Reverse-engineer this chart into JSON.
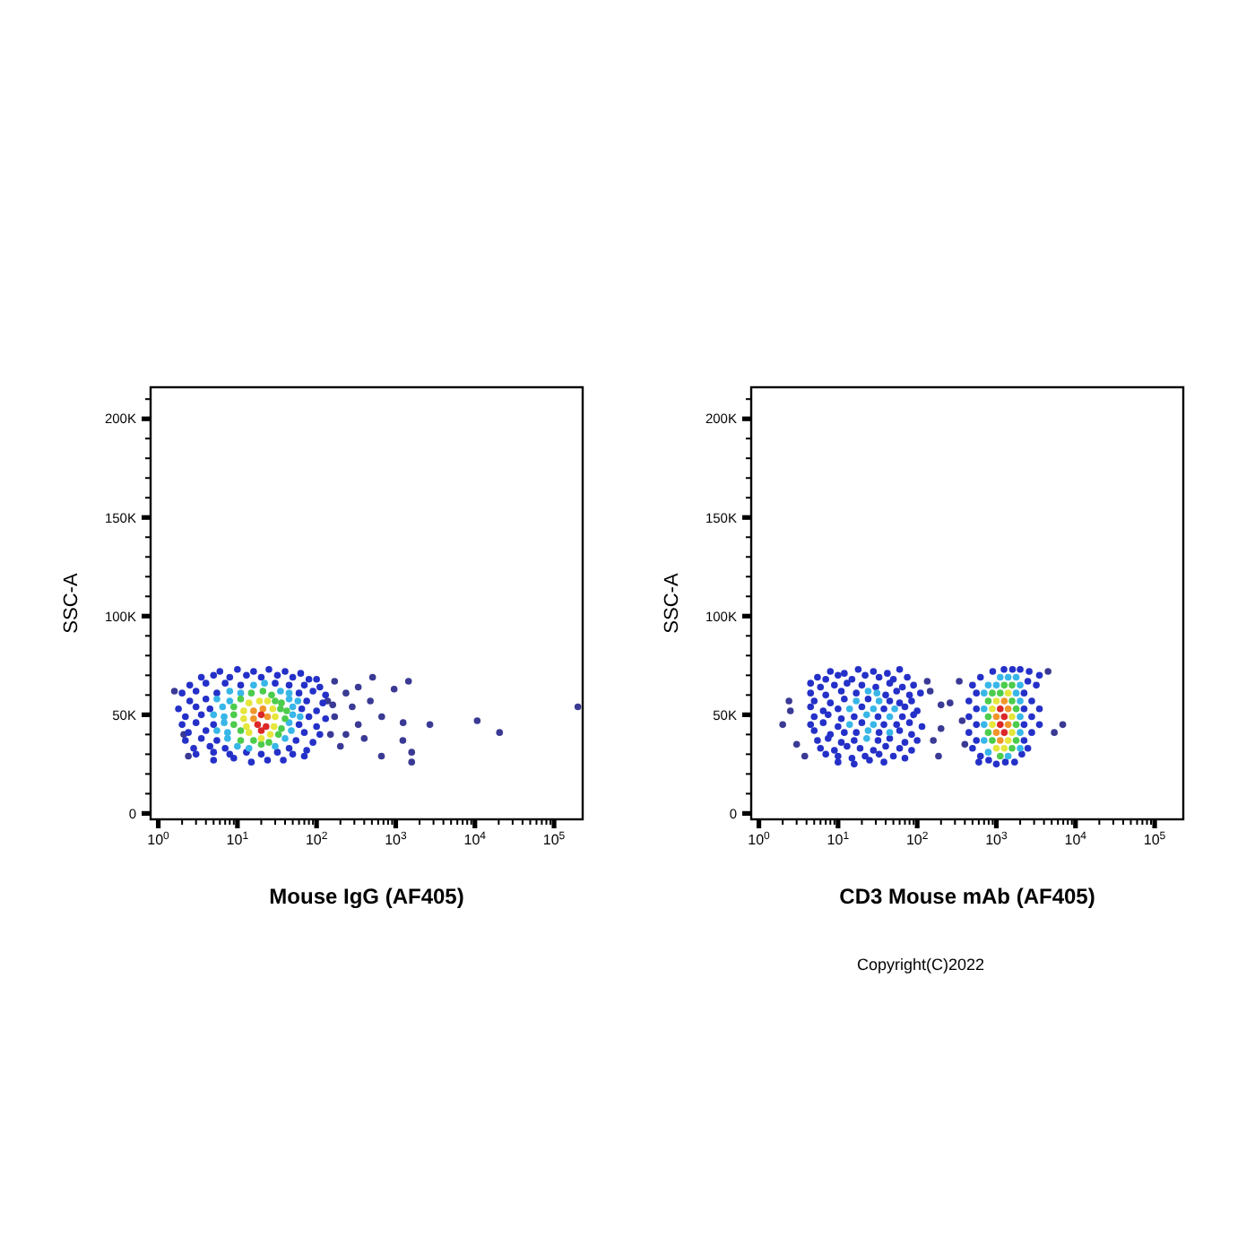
{
  "chart_data": [
    {
      "type": "scatter",
      "xlabel": "Mouse IgG (AF405)",
      "ylabel": "SSC-A",
      "log": "x",
      "marker": "circle",
      "xlim": [
        0.8,
        230000
      ],
      "ylim": [
        -3000,
        216000
      ],
      "xticks": [
        {
          "value": 1,
          "label": "10$^{0}$"
        },
        {
          "value": 2,
          "label": null
        },
        {
          "value": 3,
          "label": null
        },
        {
          "value": 4,
          "label": null
        },
        {
          "value": 5,
          "label": null
        },
        {
          "value": 6,
          "label": null
        },
        {
          "value": 7,
          "label": null
        },
        {
          "value": 8,
          "label": null
        },
        {
          "value": 9,
          "label": null
        },
        {
          "value": 10,
          "label": "10$^{1}$"
        },
        {
          "value": 20,
          "label": null
        },
        {
          "value": 30,
          "label": null
        },
        {
          "value": 40,
          "label": null
        },
        {
          "value": 50,
          "label": null
        },
        {
          "value": 60,
          "label": null
        },
        {
          "value": 70,
          "label": null
        },
        {
          "value": 80,
          "label": null
        },
        {
          "value": 90,
          "label": null
        },
        {
          "value": 100,
          "label": "10$^{2}$"
        },
        {
          "value": 200,
          "label": null
        },
        {
          "value": 300,
          "label": null
        },
        {
          "value": 400,
          "label": null
        },
        {
          "value": 500,
          "label": null
        },
        {
          "value": 600,
          "label": null
        },
        {
          "value": 700,
          "label": null
        },
        {
          "value": 800,
          "label": null
        },
        {
          "value": 900,
          "label": null
        },
        {
          "value": 1000,
          "label": "10$^{3}$"
        },
        {
          "value": 2000,
          "label": null
        },
        {
          "value": 3000,
          "label": null
        },
        {
          "value": 4000,
          "label": null
        },
        {
          "value": 5000,
          "label": null
        },
        {
          "value": 6000,
          "label": null
        },
        {
          "value": 7000,
          "label": null
        },
        {
          "value": 8000,
          "label": null
        },
        {
          "value": 9000,
          "label": null
        },
        {
          "value": 10000,
          "label": "10$^{4}$"
        },
        {
          "value": 20000,
          "label": null
        },
        {
          "value": 30000,
          "label": null
        },
        {
          "value": 40000,
          "label": null
        },
        {
          "value": 50000,
          "label": null
        },
        {
          "value": 60000,
          "label": null
        },
        {
          "value": 70000,
          "label": null
        },
        {
          "value": 80000,
          "label": null
        },
        {
          "value": 90000,
          "label": null
        },
        {
          "value": 100000,
          "label": "10$^{5}$"
        }
      ],
      "yticks": [
        0,
        {
          "value": 10000,
          "label": null
        },
        {
          "value": 20000,
          "label": null
        },
        {
          "value": 30000,
          "label": null
        },
        {
          "value": 40000,
          "label": null
        },
        {
          "value": 50000,
          "label": "50K"
        },
        {
          "value": 60000,
          "label": null
        },
        {
          "value": 70000,
          "label": null
        },
        {
          "value": 80000,
          "label": null
        },
        {
          "value": 90000,
          "label": null
        },
        {
          "value": 100000,
          "label": "100K"
        },
        {
          "value": 110000,
          "label": null
        },
        {
          "value": 120000,
          "label": null
        },
        {
          "value": 130000,
          "label": null
        },
        {
          "value": 140000,
          "label": null
        },
        {
          "value": 150000,
          "label": "150K"
        },
        {
          "value": 160000,
          "label": null
        },
        {
          "value": 170000,
          "label": null
        },
        {
          "value": 180000,
          "label": null
        },
        {
          "value": 190000,
          "label": null
        },
        {
          "value": 200000,
          "label": "200K"
        },
        {
          "value": 210000,
          "label": null
        }
      ],
      "series": [
        {
          "color": "#3a3a94",
          "x": [
            169,
            510,
            1450,
            955,
            478,
            336,
            665,
            1240,
            2700,
            1230,
            1590,
            1590,
            660,
            400,
            235,
            200,
            282,
            138,
            169,
            235,
            336,
            10700,
            20500,
            200000,
            2.1,
            2.4,
            150,
            160,
            1.6
          ],
          "values": [
            67000,
            69000,
            67000,
            63000,
            57000,
            45000,
            49000,
            46000,
            45000,
            37000,
            31000,
            26000,
            29000,
            38000,
            40000,
            34000,
            54000,
            57000,
            49000,
            61000,
            64000,
            47000,
            41000,
            54000,
            40000,
            29000,
            40000,
            55000,
            62000
          ]
        },
        {
          "color": "#2430c8",
          "x": [
            6,
            10,
            16,
            25,
            40,
            63,
            3.5,
            5,
            8,
            13,
            20,
            32,
            50,
            80,
            100,
            2.5,
            4,
            7,
            11,
            30,
            45,
            70,
            110,
            2,
            3,
            5.5,
            60,
            90,
            130,
            2.5,
            4,
            75,
            120,
            1.8,
            3,
            4.5,
            65,
            100,
            2.2,
            3.5,
            80,
            130,
            2,
            3,
            5,
            60,
            100,
            2.4,
            4,
            70,
            110,
            2.2,
            3.5,
            5.5,
            55,
            90,
            2.8,
            4.5,
            7,
            45,
            75,
            3,
            5,
            8,
            13,
            20,
            32,
            50,
            70,
            5,
            9,
            15,
            24,
            38
          ],
          "values": [
            72000,
            73000,
            72000,
            73000,
            72000,
            71000,
            69000,
            70000,
            69000,
            70000,
            69000,
            70000,
            69000,
            68000,
            68000,
            65000,
            66000,
            66000,
            65000,
            66000,
            65000,
            65000,
            64000,
            61000,
            62000,
            61000,
            61000,
            62000,
            60000,
            57000,
            58000,
            57000,
            56000,
            53000,
            54000,
            53000,
            53000,
            52000,
            49000,
            50000,
            49000,
            48000,
            45000,
            46000,
            45000,
            45000,
            44000,
            41000,
            42000,
            41000,
            40000,
            37000,
            38000,
            37000,
            37000,
            36000,
            33000,
            34000,
            33000,
            33000,
            32000,
            30000,
            31000,
            30000,
            31000,
            30000,
            31000,
            30000,
            29000,
            27000,
            28000,
            26000,
            27000,
            27000
          ]
        },
        {
          "color": "#38b6e8",
          "x": [
            16,
            22,
            8,
            11,
            35,
            45,
            5.5,
            8,
            45,
            58,
            6.5,
            50,
            5,
            6.8,
            50,
            62,
            6.8,
            45,
            5.5,
            7.5,
            48,
            7.5,
            40,
            10,
            14,
            30
          ],
          "values": [
            65000,
            66000,
            62000,
            61000,
            62000,
            61000,
            58000,
            57000,
            58000,
            57000,
            54000,
            54000,
            50000,
            49000,
            50000,
            49000,
            46000,
            46000,
            42000,
            41000,
            42000,
            38000,
            38000,
            34000,
            33000,
            34000
          ]
        },
        {
          "color": "#4ccc4c",
          "x": [
            15,
            21,
            27,
            11,
            30,
            36,
            9,
            35,
            42,
            9,
            40,
            9,
            11,
            36,
            33,
            11,
            16,
            25,
            20
          ],
          "values": [
            61000,
            62000,
            60000,
            58000,
            57000,
            56000,
            54000,
            53000,
            52000,
            50000,
            48000,
            45000,
            42000,
            43000,
            40000,
            37000,
            37000,
            36000,
            35000
          ]
        },
        {
          "color": "#e6e63c",
          "x": [
            14,
            19,
            24,
            12,
            28,
            12,
            30,
            13,
            29,
            14,
            20,
            26
          ],
          "values": [
            56000,
            57000,
            57000,
            52000,
            53000,
            48000,
            49000,
            44000,
            44000,
            41000,
            38000,
            40000
          ]
        },
        {
          "color": "#f0962a",
          "x": [
            16,
            21,
            16,
            24
          ],
          "values": [
            52000,
            53000,
            48000,
            49000
          ]
        },
        {
          "color": "#dc2828",
          "x": [
            20,
            18,
            23,
            20
          ],
          "values": [
            50000,
            45000,
            44000,
            42000
          ]
        }
      ]
    },
    {
      "type": "scatter",
      "xlabel": "CD3 Mouse mAb (AF405)",
      "ylabel": "SSC-A",
      "log": "x",
      "marker": "circle",
      "annotations": [
        "Copyright(C)2022"
      ],
      "xlim": [
        0.8,
        230000
      ],
      "ylim": [
        -3000,
        216000
      ],
      "xticks": [
        {
          "value": 1,
          "label": "10$^{0}$"
        },
        {
          "value": 2,
          "label": null
        },
        {
          "value": 3,
          "label": null
        },
        {
          "value": 4,
          "label": null
        },
        {
          "value": 5,
          "label": null
        },
        {
          "value": 6,
          "label": null
        },
        {
          "value": 7,
          "label": null
        },
        {
          "value": 8,
          "label": null
        },
        {
          "value": 9,
          "label": null
        },
        {
          "value": 10,
          "label": "10$^{1}$"
        },
        {
          "value": 20,
          "label": null
        },
        {
          "value": 30,
          "label": null
        },
        {
          "value": 40,
          "label": null
        },
        {
          "value": 50,
          "label": null
        },
        {
          "value": 60,
          "label": null
        },
        {
          "value": 70,
          "label": null
        },
        {
          "value": 80,
          "label": null
        },
        {
          "value": 90,
          "label": null
        },
        {
          "value": 100,
          "label": "10$^{2}$"
        },
        {
          "value": 200,
          "label": null
        },
        {
          "value": 300,
          "label": null
        },
        {
          "value": 400,
          "label": null
        },
        {
          "value": 500,
          "label": null
        },
        {
          "value": 600,
          "label": null
        },
        {
          "value": 700,
          "label": null
        },
        {
          "value": 800,
          "label": null
        },
        {
          "value": 900,
          "label": null
        },
        {
          "value": 1000,
          "label": "10$^{3}$"
        },
        {
          "value": 2000,
          "label": null
        },
        {
          "value": 3000,
          "label": null
        },
        {
          "value": 4000,
          "label": null
        },
        {
          "value": 5000,
          "label": null
        },
        {
          "value": 6000,
          "label": null
        },
        {
          "value": 7000,
          "label": null
        },
        {
          "value": 8000,
          "label": null
        },
        {
          "value": 9000,
          "label": null
        },
        {
          "value": 10000,
          "label": "10$^{4}$"
        },
        {
          "value": 20000,
          "label": null
        },
        {
          "value": 30000,
          "label": null
        },
        {
          "value": 40000,
          "label": null
        },
        {
          "value": 50000,
          "label": null
        },
        {
          "value": 60000,
          "label": null
        },
        {
          "value": 70000,
          "label": null
        },
        {
          "value": 80000,
          "label": null
        },
        {
          "value": 90000,
          "label": null
        },
        {
          "value": 100000,
          "label": "10$^{5}$"
        }
      ],
      "yticks": [
        0,
        {
          "value": 10000,
          "label": null
        },
        {
          "value": 20000,
          "label": null
        },
        {
          "value": 30000,
          "label": null
        },
        {
          "value": 40000,
          "label": null
        },
        {
          "value": 50000,
          "label": "50K"
        },
        {
          "value": 60000,
          "label": null
        },
        {
          "value": 70000,
          "label": null
        },
        {
          "value": 80000,
          "label": null
        },
        {
          "value": 90000,
          "label": null
        },
        {
          "value": 100000,
          "label": "100K"
        },
        {
          "value": 110000,
          "label": null
        },
        {
          "value": 120000,
          "label": null
        },
        {
          "value": 130000,
          "label": null
        },
        {
          "value": 140000,
          "label": null
        },
        {
          "value": 150000,
          "label": "150K"
        },
        {
          "value": 160000,
          "label": null
        },
        {
          "value": 170000,
          "label": null
        },
        {
          "value": 180000,
          "label": null
        },
        {
          "value": 190000,
          "label": null
        },
        {
          "value": 200000,
          "label": "200K"
        },
        {
          "value": 210000,
          "label": null
        }
      ],
      "series": [
        {
          "color": "#3a3a94",
          "x": [
            2.4,
            2.5,
            3,
            3.8,
            134,
            146,
            200,
            200,
            186,
            260,
            6900,
            5400,
            4500,
            340,
            370,
            400,
            2,
            160
          ],
          "values": [
            57000,
            52000,
            35000,
            29000,
            67000,
            62000,
            55000,
            43000,
            29000,
            56000,
            45000,
            41000,
            72000,
            67000,
            47000,
            35000,
            45000,
            37000
          ]
        },
        {
          "color": "#2430c8",
          "x": [
            8,
            12,
            18,
            28,
            42,
            60,
            5.5,
            7,
            10,
            15,
            22,
            33,
            50,
            75,
            4.5,
            6,
            9,
            13,
            20,
            30,
            45,
            65,
            90,
            4.5,
            7,
            11,
            17,
            40,
            55,
            80,
            110,
            5,
            8,
            12,
            60,
            85,
            4.5,
            6.5,
            10,
            70,
            100,
            5,
            7.5,
            11,
            65,
            90,
            4.5,
            6.5,
            10,
            55,
            80,
            115,
            5,
            8,
            12,
            60,
            85,
            5.5,
            7.5,
            11,
            16,
            45,
            70,
            100,
            6,
            9,
            13,
            19,
            28,
            40,
            60,
            85,
            7,
            10,
            15,
            22,
            33,
            50,
            70,
            10,
            16,
            25,
            38,
            24,
            45,
            20,
            38,
            16,
            32,
            20,
            38,
            17,
            33,
            32,
            560,
            560,
            560,
            560,
            630,
            630,
            2240,
            2240,
            2240,
            2240,
            2500,
            450,
            450,
            450,
            500,
            500,
            2800,
            2800,
            2800,
            3200,
            900,
            1250,
            1600,
            2000,
            2600,
            1000,
            1300,
            1700,
            800,
            2100,
            3500,
            3500,
            3500,
            600,
            2500
          ],
          "values": [
            72000,
            71000,
            73000,
            72000,
            71000,
            73000,
            69000,
            68000,
            70000,
            68000,
            70000,
            69000,
            68000,
            69000,
            66000,
            64000,
            65000,
            66000,
            65000,
            64000,
            66000,
            64000,
            65000,
            61000,
            60000,
            62000,
            61000,
            60000,
            62000,
            60000,
            61000,
            57000,
            56000,
            58000,
            56000,
            57000,
            54000,
            52000,
            53000,
            54000,
            52000,
            49000,
            50000,
            48000,
            49000,
            50000,
            45000,
            46000,
            44000,
            45000,
            46000,
            44000,
            42000,
            40000,
            41000,
            42000,
            40000,
            37000,
            38000,
            36000,
            37000,
            38000,
            36000,
            37000,
            33000,
            32000,
            34000,
            33000,
            32000,
            34000,
            33000,
            32000,
            30000,
            29000,
            28000,
            29000,
            30000,
            29000,
            28000,
            26000,
            25000,
            27000,
            26000,
            58000,
            57000,
            54000,
            53000,
            49000,
            49000,
            46000,
            45000,
            41000,
            41000,
            37000,
            45000,
            53000,
            37000,
            61000,
            29000,
            69000,
            45000,
            53000,
            37000,
            61000,
            67000,
            49000,
            41000,
            57000,
            33000,
            65000,
            49000,
            41000,
            57000,
            65000,
            72000,
            73000,
            73000,
            73000,
            72000,
            25000,
            26000,
            26000,
            27000,
            30000,
            70000,
            53000,
            45000,
            26000,
            33000
          ]
        },
        {
          "color": "#38b6e8",
          "x": [
            17,
            33,
            14,
            28,
            52,
            23,
            45,
            14,
            28,
            24,
            45,
            23,
            24,
            31,
            700,
            700,
            700,
            2000,
            2000,
            2000,
            790,
            1000,
            1410,
            1780,
            1780,
            790,
            2000,
            700,
            1120,
            2000,
            1410
          ],
          "values": [
            57000,
            57000,
            53000,
            53000,
            53000,
            50000,
            49000,
            45000,
            45000,
            42000,
            41000,
            38000,
            62000,
            61000,
            45000,
            53000,
            37000,
            49000,
            41000,
            57000,
            65000,
            65000,
            69000,
            61000,
            69000,
            31000,
            33000,
            61000,
            69000,
            65000,
            29000
          ]
        },
        {
          "color": "#4ccc4c",
          "x": [
            790,
            790,
            1780,
            1780,
            890,
            1120,
            1580,
            1580,
            1260,
            890,
            1580,
            1780,
            790,
            1120
          ],
          "values": [
            49000,
            41000,
            45000,
            53000,
            61000,
            61000,
            57000,
            65000,
            65000,
            37000,
            33000,
            37000,
            57000,
            29000
          ]
        },
        {
          "color": "#e6e63c",
          "x": [
            890,
            890,
            1580,
            1580,
            1000,
            1410,
            1000,
            1260,
            1410
          ],
          "values": [
            45000,
            53000,
            49000,
            41000,
            57000,
            61000,
            33000,
            33000,
            37000
          ]
        },
        {
          "color": "#f0962a",
          "x": [
            1000,
            1410,
            1000,
            1410,
            1260,
            1120
          ],
          "values": [
            49000,
            45000,
            41000,
            53000,
            57000,
            37000
          ]
        },
        {
          "color": "#dc2828",
          "x": [
            1120,
            1260,
            1120,
            1260
          ],
          "values": [
            45000,
            49000,
            53000,
            41000
          ]
        }
      ]
    }
  ]
}
